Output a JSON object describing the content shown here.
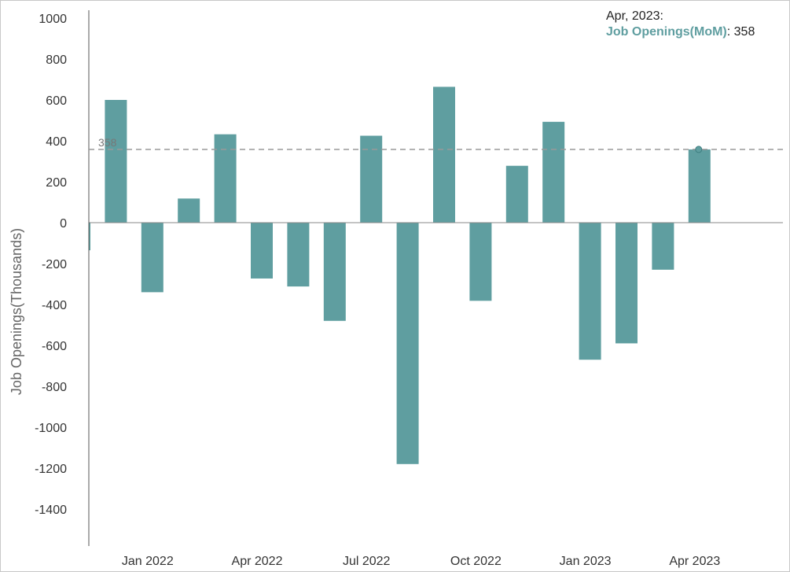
{
  "chart_data": {
    "type": "bar",
    "title": "",
    "xlabel": "",
    "ylabel": "Job Openings(Thousands)",
    "ylim": [
      -1520,
      1000
    ],
    "y_ticks": [
      1000,
      800,
      600,
      400,
      200,
      0,
      -200,
      -400,
      -600,
      -800,
      -1000,
      -1200,
      -1400
    ],
    "x_tick_labels": [
      "Jan 2022",
      "Apr 2022",
      "Jul 2022",
      "Oct 2022",
      "Jan 2023",
      "Apr 2023"
    ],
    "categories": [
      "Nov 2021",
      "Dec 2021",
      "Jan 2022",
      "Feb 2022",
      "Mar 2022",
      "Apr 2022",
      "May 2022",
      "Jun 2022",
      "Jul 2022",
      "Aug 2022",
      "Sep 2022",
      "Oct 2022",
      "Nov 2022",
      "Dec 2022",
      "Jan 2023",
      "Feb 2023",
      "Mar 2023",
      "Apr 2023"
    ],
    "series": [
      {
        "name": "Job Openings(MoM)",
        "values": [
          -135,
          600,
          -340,
          118,
          432,
          -273,
          -312,
          -480,
          425,
          -1180,
          664,
          -382,
          278,
          493,
          -670,
          -590,
          -230,
          358
        ],
        "color": "#5f9ea0"
      }
    ],
    "reference_line": {
      "value": 358,
      "label": "358",
      "style": "dashed",
      "color": "#999999"
    },
    "highlight_index": 17,
    "grid": false
  },
  "tooltip": {
    "date": "Apr, 2023:",
    "series_name": "Job Openings(MoM)",
    "value_text": ": 358"
  }
}
